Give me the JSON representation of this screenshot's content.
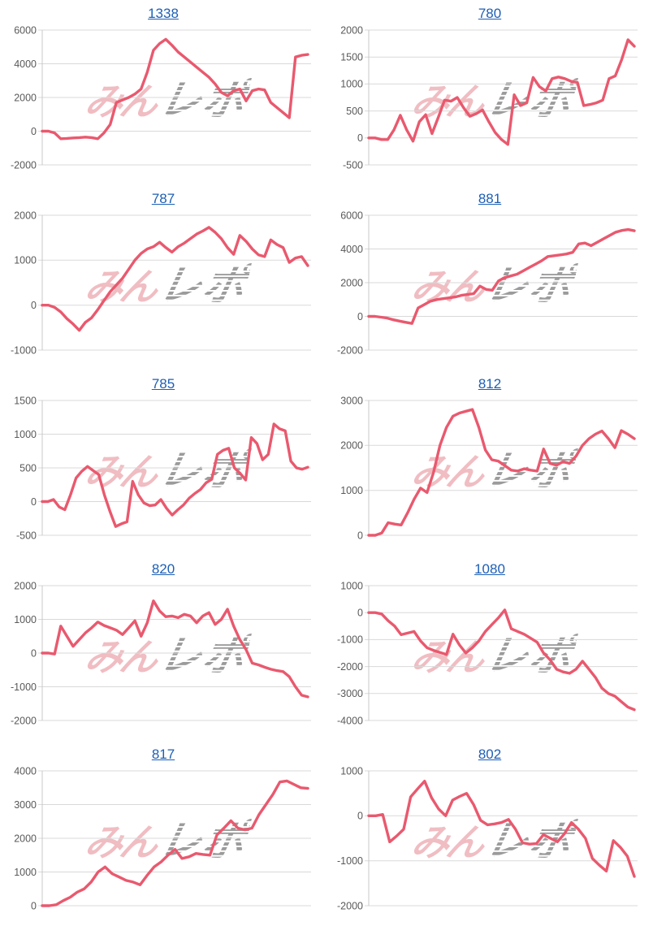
{
  "watermark": {
    "pink_text": "みん",
    "gray_text": "レポ",
    "pink_color": "#eeb2b8",
    "gray_color": "#9b9b9b"
  },
  "style": {
    "line_color": "#e9596e",
    "grid_color": "#d9d9d9",
    "axis_color": "#c8c8c8",
    "tick_label_color": "#595959",
    "link_color": "#1d5fb5"
  },
  "chart_data": [
    {
      "type": "line",
      "title": "1338",
      "xlabel": "",
      "ylabel": "",
      "ylim": [
        -2000,
        6000
      ],
      "yticks": [
        -2000,
        0,
        2000,
        4000,
        6000
      ],
      "grid": true,
      "legend": false,
      "values": [
        0,
        0,
        -100,
        -450,
        -430,
        -400,
        -380,
        -350,
        -380,
        -450,
        -100,
        400,
        1700,
        1850,
        2000,
        2200,
        2500,
        3500,
        4800,
        5200,
        5450,
        5100,
        4700,
        4400,
        4100,
        3800,
        3500,
        3200,
        2800,
        2300,
        2100,
        2400,
        2500,
        1800,
        2400,
        2500,
        2450,
        1700,
        1400,
        1100,
        800,
        4400,
        4500,
        4550
      ]
    },
    {
      "type": "line",
      "title": "780",
      "xlabel": "",
      "ylabel": "",
      "ylim": [
        -500,
        2000
      ],
      "yticks": [
        -500,
        0,
        500,
        1000,
        1500,
        2000
      ],
      "grid": true,
      "legend": false,
      "values": [
        0,
        0,
        -30,
        -30,
        150,
        420,
        150,
        -60,
        300,
        430,
        80,
        380,
        700,
        680,
        750,
        560,
        400,
        450,
        520,
        300,
        100,
        -30,
        -120,
        800,
        600,
        650,
        1120,
        950,
        870,
        1100,
        1130,
        1100,
        1050,
        1030,
        600,
        620,
        650,
        700,
        1100,
        1150,
        1450,
        1820,
        1700
      ]
    },
    {
      "type": "line",
      "title": "787",
      "xlabel": "",
      "ylabel": "",
      "ylim": [
        -1000,
        2000
      ],
      "yticks": [
        -1000,
        0,
        1000,
        2000
      ],
      "grid": true,
      "legend": false,
      "values": [
        0,
        0,
        -50,
        -150,
        -300,
        -420,
        -560,
        -380,
        -280,
        -100,
        100,
        300,
        450,
        600,
        800,
        1000,
        1150,
        1250,
        1300,
        1400,
        1280,
        1180,
        1300,
        1380,
        1480,
        1580,
        1650,
        1730,
        1620,
        1480,
        1280,
        1130,
        1550,
        1420,
        1250,
        1120,
        1080,
        1450,
        1350,
        1280,
        950,
        1050,
        1080,
        880
      ]
    },
    {
      "type": "line",
      "title": "881",
      "xlabel": "",
      "ylabel": "",
      "ylim": [
        -2000,
        6000
      ],
      "yticks": [
        -2000,
        0,
        2000,
        4000,
        6000
      ],
      "grid": true,
      "legend": false,
      "values": [
        0,
        0,
        -50,
        -100,
        -200,
        -280,
        -350,
        -420,
        500,
        700,
        900,
        1000,
        1050,
        1100,
        1150,
        1250,
        1300,
        1350,
        1800,
        1600,
        1550,
        2100,
        2300,
        2400,
        2500,
        2700,
        2900,
        3100,
        3300,
        3550,
        3600,
        3650,
        3700,
        3800,
        4300,
        4350,
        4200,
        4400,
        4600,
        4800,
        5000,
        5100,
        5150,
        5080
      ]
    },
    {
      "type": "line",
      "title": "785",
      "xlabel": "",
      "ylabel": "",
      "ylim": [
        -500,
        1500
      ],
      "yticks": [
        -500,
        0,
        500,
        1000,
        1500
      ],
      "grid": true,
      "legend": false,
      "values": [
        0,
        0,
        30,
        -80,
        -120,
        100,
        350,
        450,
        520,
        460,
        400,
        100,
        -150,
        -370,
        -330,
        -300,
        300,
        100,
        -20,
        -60,
        -50,
        30,
        -100,
        -200,
        -120,
        -50,
        50,
        120,
        180,
        280,
        330,
        700,
        760,
        790,
        500,
        420,
        320,
        950,
        860,
        620,
        700,
        1150,
        1080,
        1050,
        600,
        500,
        480,
        510
      ]
    },
    {
      "type": "line",
      "title": "812",
      "xlabel": "",
      "ylabel": "",
      "ylim": [
        0,
        3000
      ],
      "yticks": [
        0,
        1000,
        2000,
        3000
      ],
      "grid": true,
      "legend": false,
      "values": [
        0,
        0,
        50,
        280,
        250,
        230,
        500,
        800,
        1050,
        950,
        1400,
        2000,
        2400,
        2650,
        2720,
        2760,
        2800,
        2400,
        1900,
        1680,
        1650,
        1550,
        1450,
        1430,
        1480,
        1450,
        1430,
        1920,
        1600,
        1560,
        1640,
        1600,
        1760,
        2000,
        2150,
        2250,
        2320,
        2150,
        1950,
        2330,
        2250,
        2150
      ]
    },
    {
      "type": "line",
      "title": "820",
      "xlabel": "",
      "ylabel": "",
      "ylim": [
        -2000,
        2000
      ],
      "yticks": [
        -2000,
        -1000,
        0,
        1000,
        2000
      ],
      "grid": true,
      "legend": false,
      "values": [
        0,
        0,
        -30,
        800,
        500,
        200,
        400,
        600,
        750,
        920,
        820,
        750,
        680,
        550,
        750,
        960,
        500,
        900,
        1550,
        1250,
        1080,
        1100,
        1050,
        1150,
        1100,
        900,
        1100,
        1200,
        850,
        1000,
        1300,
        800,
        400,
        100,
        -300,
        -350,
        -420,
        -480,
        -520,
        -550,
        -700,
        -1000,
        -1250,
        -1300
      ]
    },
    {
      "type": "line",
      "title": "1080",
      "xlabel": "",
      "ylabel": "",
      "ylim": [
        -4000,
        1000
      ],
      "yticks": [
        -4000,
        -3000,
        -2000,
        -1000,
        0,
        1000
      ],
      "grid": true,
      "legend": false,
      "values": [
        0,
        0,
        -50,
        -300,
        -500,
        -820,
        -760,
        -700,
        -1050,
        -1300,
        -1400,
        -1480,
        -1550,
        -800,
        -1200,
        -1500,
        -1300,
        -1050,
        -700,
        -450,
        -200,
        100,
        -600,
        -700,
        -800,
        -950,
        -1100,
        -1500,
        -1750,
        -2100,
        -2200,
        -2250,
        -2100,
        -1800,
        -2100,
        -2400,
        -2800,
        -3000,
        -3100,
        -3300,
        -3500,
        -3600
      ]
    },
    {
      "type": "line",
      "title": "817",
      "xlabel": "",
      "ylabel": "",
      "ylim": [
        0,
        4000
      ],
      "yticks": [
        0,
        1000,
        2000,
        3000,
        4000
      ],
      "grid": true,
      "legend": false,
      "values": [
        0,
        0,
        30,
        150,
        250,
        400,
        500,
        700,
        1000,
        1150,
        950,
        850,
        750,
        700,
        620,
        900,
        1150,
        1300,
        1500,
        1670,
        1400,
        1450,
        1550,
        1520,
        1500,
        2100,
        2300,
        2520,
        2300,
        2250,
        2300,
        2700,
        3000,
        3300,
        3670,
        3700,
        3600,
        3500,
        3480
      ]
    },
    {
      "type": "line",
      "title": "802",
      "xlabel": "",
      "ylabel": "",
      "ylim": [
        -2000,
        1000
      ],
      "yticks": [
        -2000,
        -1000,
        0,
        1000
      ],
      "grid": true,
      "legend": false,
      "values": [
        0,
        0,
        30,
        -580,
        -450,
        -300,
        420,
        600,
        770,
        400,
        150,
        0,
        350,
        430,
        500,
        250,
        -100,
        -200,
        -180,
        -150,
        -80,
        -300,
        -600,
        -630,
        -620,
        -420,
        -500,
        -580,
        -400,
        -150,
        -300,
        -500,
        -950,
        -1100,
        -1230,
        -550,
        -700,
        -900,
        -1350
      ]
    }
  ]
}
